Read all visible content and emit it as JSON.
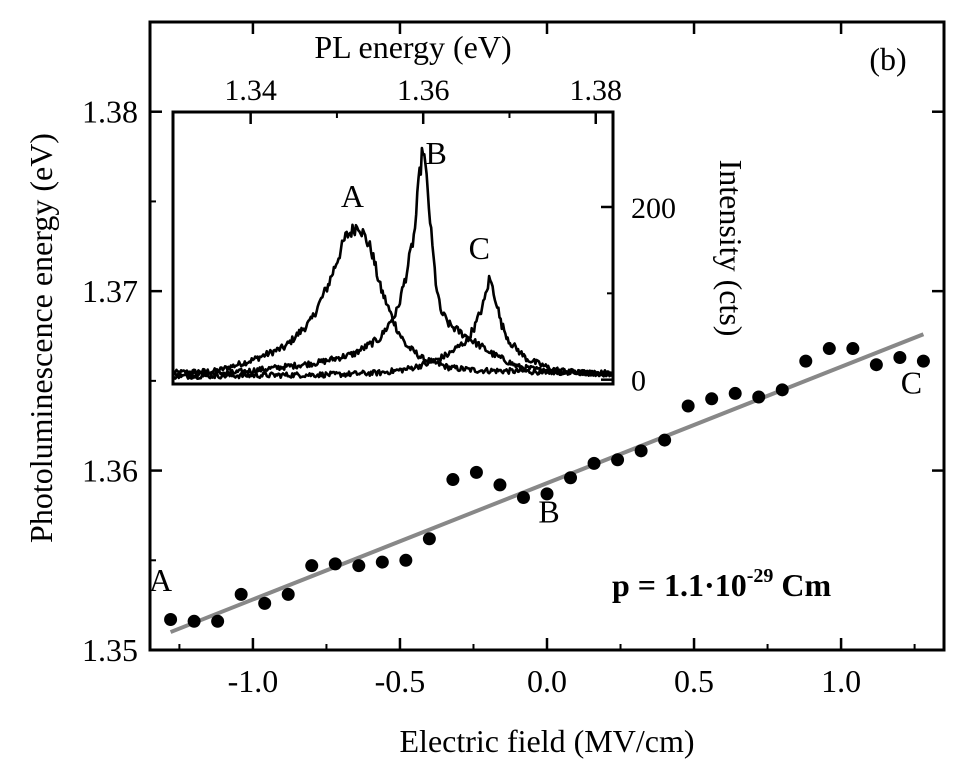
{
  "chart_data": [
    {
      "type": "scatter",
      "panel_label": "(b)",
      "xlabel": "Electric field (MV/cm)",
      "ylabel": "Photoluminescence energy (eV)",
      "xlim": [
        -1.35,
        1.35
      ],
      "ylim": [
        1.35,
        1.385
      ],
      "x_ticks": [
        -1.0,
        -0.5,
        0.0,
        0.5,
        1.0
      ],
      "x_tick_labels": [
        "-1.0",
        "-0.5",
        "0.0",
        "0.5",
        "1.0"
      ],
      "y_ticks": [
        1.35,
        1.36,
        1.37,
        1.38
      ],
      "y_tick_labels": [
        "1.35",
        "1.36",
        "1.37",
        "1.38"
      ],
      "series": [
        {
          "marker": "filled-circle",
          "color": "#000000",
          "points": [
            [
              -1.28,
              1.3517
            ],
            [
              -1.2,
              1.3516
            ],
            [
              -1.12,
              1.3516
            ],
            [
              -1.04,
              1.3531
            ],
            [
              -0.96,
              1.3526
            ],
            [
              -0.88,
              1.3531
            ],
            [
              -0.8,
              1.3547
            ],
            [
              -0.72,
              1.3548
            ],
            [
              -0.64,
              1.3547
            ],
            [
              -0.56,
              1.3549
            ],
            [
              -0.48,
              1.355
            ],
            [
              -0.4,
              1.3562
            ],
            [
              -0.32,
              1.3595
            ],
            [
              -0.24,
              1.3599
            ],
            [
              -0.16,
              1.3592
            ],
            [
              -0.08,
              1.3585
            ],
            [
              0.0,
              1.3587
            ],
            [
              0.08,
              1.3596
            ],
            [
              0.16,
              1.3604
            ],
            [
              0.24,
              1.3606
            ],
            [
              0.32,
              1.3611
            ],
            [
              0.4,
              1.3617
            ],
            [
              0.48,
              1.3636
            ],
            [
              0.56,
              1.364
            ],
            [
              0.64,
              1.3643
            ],
            [
              0.72,
              1.3641
            ],
            [
              0.8,
              1.3645
            ],
            [
              0.88,
              1.3661
            ],
            [
              0.96,
              1.3668
            ],
            [
              1.04,
              1.3668
            ],
            [
              1.12,
              1.3659
            ],
            [
              1.2,
              1.3663
            ],
            [
              1.28,
              1.3661
            ]
          ]
        },
        {
          "type": "line",
          "color": "#888888",
          "x": [
            -1.28,
            1.28
          ],
          "y": [
            1.351,
            1.3676
          ]
        }
      ],
      "annotations": [
        {
          "text": "A",
          "x": -1.28,
          "y": 1.3533
        },
        {
          "text": "B",
          "x": 0.0,
          "y": 1.3571
        },
        {
          "text": "C",
          "x": 1.28,
          "y": 1.3643
        }
      ],
      "formula": {
        "prefix": "p = 1.1·10",
        "exponent": "-29",
        "suffix": " Cm"
      }
    },
    {
      "type": "line",
      "xlabel": "PL energy (eV)",
      "ylabel": "Intensity (cts)",
      "xlim": [
        1.331,
        1.382
      ],
      "ylim": [
        -5,
        310
      ],
      "x_ticks": [
        1.34,
        1.36,
        1.38
      ],
      "x_tick_labels": [
        "1.34",
        "1.36",
        "1.38"
      ],
      "y_ticks": [
        0,
        200
      ],
      "y_tick_labels": [
        "0",
        "200"
      ],
      "series": [
        {
          "name": "A",
          "center": 1.3518,
          "amplitude": 178,
          "baseline": 8,
          "x": [
            1.331,
            1.336,
            1.34,
            1.344,
            1.347,
            1.349,
            1.351,
            1.3525,
            1.354,
            1.355,
            1.356,
            1.357,
            1.358,
            1.36,
            1.363,
            1.366,
            1.37,
            1.375,
            1.382
          ],
          "y": [
            8,
            10,
            22,
            38,
            68,
            110,
            165,
            180,
            150,
            108,
            82,
            58,
            40,
            24,
            14,
            11,
            10,
            9,
            8
          ]
        },
        {
          "name": "B",
          "center": 1.36,
          "amplitude": 265,
          "baseline": 5,
          "x": [
            1.331,
            1.338,
            1.344,
            1.348,
            1.352,
            1.355,
            1.357,
            1.358,
            1.359,
            1.3595,
            1.36,
            1.3605,
            1.361,
            1.3615,
            1.362,
            1.363,
            1.365,
            1.368,
            1.371,
            1.375,
            1.382
          ],
          "y": [
            6,
            8,
            15,
            20,
            30,
            48,
            80,
            120,
            170,
            230,
            270,
            220,
            160,
            110,
            80,
            64,
            50,
            30,
            15,
            9,
            7
          ]
        },
        {
          "name": "C",
          "center": 1.3677,
          "amplitude": 120,
          "baseline": 4,
          "x": [
            1.331,
            1.34,
            1.35,
            1.355,
            1.358,
            1.361,
            1.363,
            1.365,
            1.366,
            1.367,
            1.3677,
            1.3685,
            1.369,
            1.37,
            1.372,
            1.375,
            1.378,
            1.382
          ],
          "y": [
            4,
            5,
            6,
            8,
            12,
            20,
            30,
            45,
            62,
            88,
            118,
            90,
            66,
            44,
            24,
            12,
            8,
            6
          ]
        }
      ],
      "annotations": [
        {
          "text": "A",
          "x": 1.3518,
          "y": 200
        },
        {
          "text": "B",
          "x": 1.3615,
          "y": 250
        },
        {
          "text": "C",
          "x": 1.3665,
          "y": 140
        }
      ]
    }
  ]
}
